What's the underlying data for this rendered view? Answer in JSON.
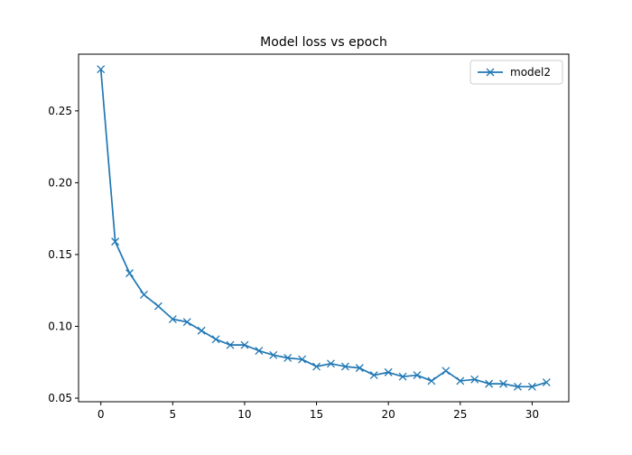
{
  "chart_data": {
    "type": "line",
    "title": "Model loss vs epoch",
    "xlabel": "",
    "ylabel": "",
    "xlim": [
      -1.55,
      32.55
    ],
    "ylim": [
      0.0475,
      0.2895
    ],
    "x_ticks": [
      0,
      5,
      10,
      15,
      20,
      25,
      30
    ],
    "y_ticks": [
      0.05,
      0.1,
      0.15,
      0.2,
      0.25
    ],
    "x_tick_labels": [
      "0",
      "5",
      "10",
      "15",
      "20",
      "25",
      "30"
    ],
    "y_tick_labels": [
      "0.05",
      "0.10",
      "0.15",
      "0.20",
      "0.25"
    ],
    "grid": false,
    "legend_position": "top-right",
    "series": [
      {
        "name": "model2",
        "color": "#1f77b4",
        "marker": "x",
        "x": [
          0,
          1,
          2,
          3,
          4,
          5,
          6,
          7,
          8,
          9,
          10,
          11,
          12,
          13,
          14,
          15,
          16,
          17,
          18,
          19,
          20,
          21,
          22,
          23,
          24,
          25,
          26,
          27,
          28,
          29,
          30,
          31
        ],
        "y": [
          0.279,
          0.159,
          0.137,
          0.122,
          0.114,
          0.105,
          0.103,
          0.097,
          0.091,
          0.087,
          0.087,
          0.083,
          0.08,
          0.078,
          0.077,
          0.072,
          0.074,
          0.072,
          0.071,
          0.066,
          0.068,
          0.065,
          0.066,
          0.062,
          0.069,
          0.062,
          0.063,
          0.06,
          0.06,
          0.058,
          0.058,
          0.061
        ]
      }
    ]
  }
}
